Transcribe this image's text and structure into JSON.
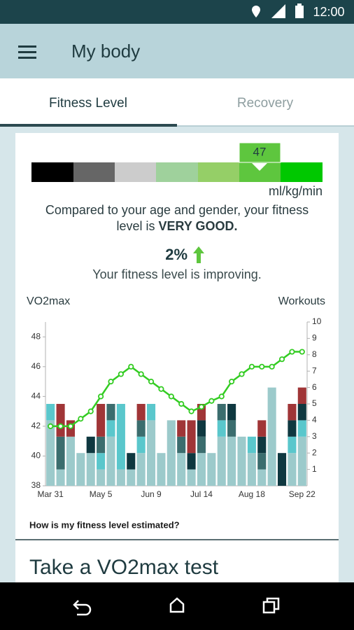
{
  "status_bar": {
    "time": "12:00"
  },
  "app_bar": {
    "title": "My body"
  },
  "tabs": [
    "Fitness Level",
    "Recovery"
  ],
  "fitness_level": {
    "value": 47,
    "unit": "ml/kg/min",
    "summary": "Compared to your age and gender, your fitness level is",
    "rating": "VERY GOOD.",
    "change": "2%",
    "trend": "Your fitness level is improving."
  },
  "chart_data": {
    "type": "bar",
    "y_label": "VO2max",
    "y2_label": "Workouts",
    "categories": [
      "Mar 31",
      null,
      null,
      null,
      null,
      "May 5",
      null,
      null,
      null,
      null,
      "Jun 9",
      null,
      null,
      null,
      null,
      "Jul 14",
      null,
      null,
      null,
      null,
      "Aug 18",
      null,
      null,
      null,
      null,
      "Sep 22"
    ],
    "ylim": [
      38,
      49
    ],
    "yticks": [
      38,
      40,
      42,
      44,
      46,
      48
    ],
    "y2lim": [
      0,
      10
    ],
    "y2ticks": [
      1,
      2,
      3,
      4,
      5,
      6,
      7,
      8,
      9,
      10
    ],
    "series": [
      {
        "type": "bar",
        "axis": "y2",
        "color": "#9ccacb",
        "values": [
          4,
          1,
          3,
          2,
          2,
          1,
          3,
          1,
          1,
          2,
          4,
          2,
          4,
          2,
          1,
          2,
          2,
          3,
          3,
          3,
          2,
          1,
          6,
          0,
          2,
          3
        ]
      },
      {
        "type": "bar",
        "axis": "y2",
        "color": "#5ac7cc",
        "values": [
          1,
          0,
          0,
          0,
          0,
          1,
          1,
          4,
          0,
          1,
          1,
          0,
          0,
          0,
          0,
          0,
          0,
          1,
          0,
          0,
          1,
          0,
          0,
          0,
          1,
          1
        ]
      },
      {
        "type": "bar",
        "axis": "y2",
        "color": "#3b6d6e",
        "values": [
          0,
          2,
          0,
          0,
          0,
          1,
          1,
          0,
          0,
          1,
          0,
          0,
          0,
          1,
          0,
          1,
          0,
          1,
          1,
          0,
          0,
          1,
          0,
          0,
          0,
          0
        ]
      },
      {
        "type": "bar",
        "axis": "y2",
        "color": "#0f3840",
        "values": [
          0,
          0,
          0,
          0,
          1,
          0,
          0,
          0,
          1,
          0,
          0,
          0,
          0,
          0,
          1,
          1,
          0,
          0,
          1,
          0,
          0,
          1,
          0,
          2,
          1,
          1
        ]
      },
      {
        "type": "bar",
        "axis": "y2",
        "color": "#a03537",
        "values": [
          0,
          2,
          1,
          0,
          0,
          2,
          0,
          0,
          0,
          1,
          0,
          0,
          0,
          1,
          2,
          1,
          0,
          0,
          0,
          0,
          0,
          1,
          0,
          0,
          1,
          1
        ]
      },
      {
        "type": "line",
        "axis": "y",
        "color": "#33cc22",
        "values": [
          42,
          42,
          42,
          42.5,
          43,
          44,
          45,
          45.5,
          46,
          45.5,
          45,
          44.5,
          44,
          43.5,
          43,
          43.3,
          43.7,
          44,
          45,
          45.5,
          46,
          46,
          46,
          46.5,
          47,
          47
        ]
      }
    ]
  },
  "links": {
    "estimate_info": "How is my fitness level estimated?"
  },
  "next_card": {
    "title": "Take a VO2max test"
  }
}
